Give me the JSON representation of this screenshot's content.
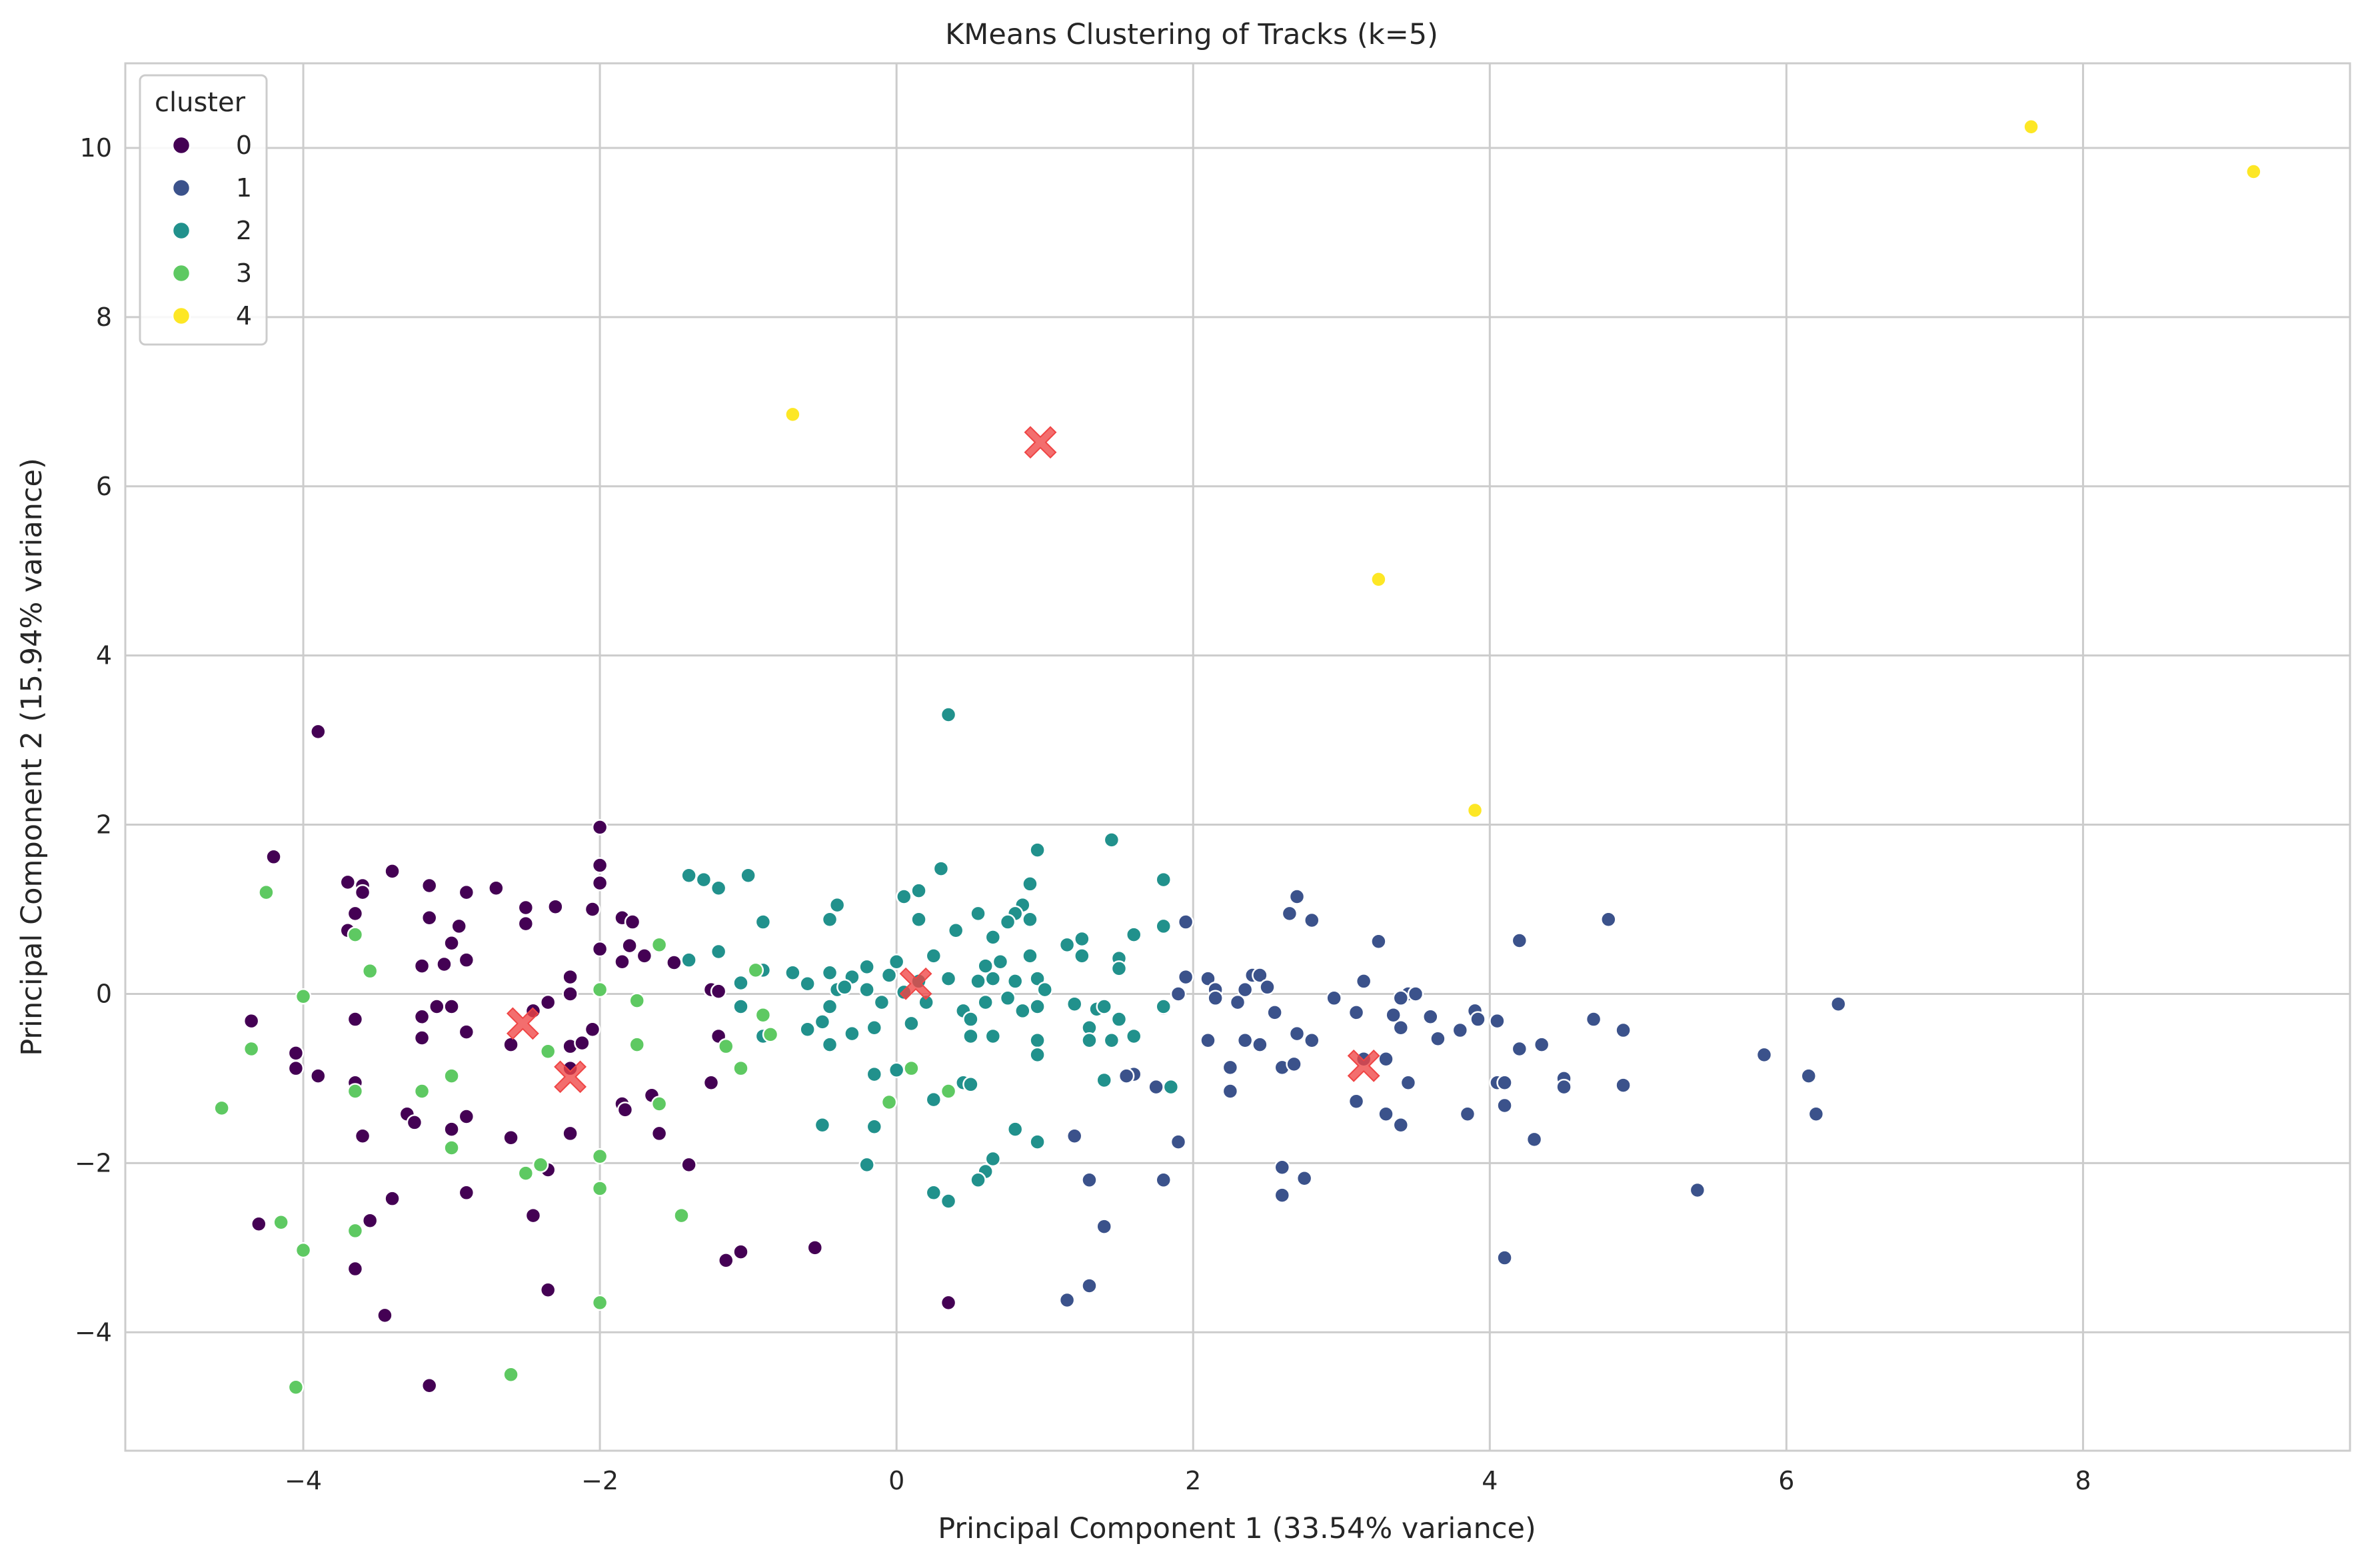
{
  "chart_data": {
    "type": "scatter",
    "title": "KMeans Clustering of Tracks (k=5)",
    "xlabel": "Principal Component 1 (33.54% variance)",
    "ylabel": "Principal Component 2 (15.94% variance)",
    "xlim": [
      -5.2,
      9.8
    ],
    "ylim": [
      -5.4,
      11.0
    ],
    "xticks": [
      -4,
      -2,
      0,
      2,
      4,
      6,
      8
    ],
    "yticks": [
      -4,
      -2,
      0,
      2,
      4,
      6,
      8,
      10
    ],
    "grid": true,
    "legend": {
      "title": "cluster",
      "placement": "top-left"
    },
    "colors": [
      "#440154",
      "#3b528b",
      "#21918c",
      "#5ec962",
      "#fde725"
    ],
    "centroid_color": "#ef4545",
    "series": [
      {
        "name": "0",
        "points": [
          [
            -3.9,
            3.1
          ],
          [
            -2.0,
            1.97
          ],
          [
            -4.2,
            1.62
          ],
          [
            -3.4,
            1.45
          ],
          [
            -2.0,
            1.52
          ],
          [
            -3.7,
            1.32
          ],
          [
            -3.6,
            1.28
          ],
          [
            -2.0,
            1.31
          ],
          [
            -3.6,
            1.2
          ],
          [
            -3.15,
            1.28
          ],
          [
            -2.7,
            1.25
          ],
          [
            -2.9,
            1.2
          ],
          [
            -2.3,
            1.03
          ],
          [
            -2.5,
            1.02
          ],
          [
            -2.05,
            1.0
          ],
          [
            -3.65,
            0.95
          ],
          [
            -1.85,
            0.9
          ],
          [
            -3.15,
            0.9
          ],
          [
            -2.95,
            0.8
          ],
          [
            -3.7,
            0.75
          ],
          [
            -2.5,
            0.83
          ],
          [
            -1.78,
            0.85
          ],
          [
            -3.0,
            0.6
          ],
          [
            -1.8,
            0.57
          ],
          [
            -2.0,
            0.53
          ],
          [
            -1.7,
            0.45
          ],
          [
            -1.85,
            0.38
          ],
          [
            -2.9,
            0.4
          ],
          [
            -3.05,
            0.35
          ],
          [
            -3.2,
            0.33
          ],
          [
            -1.5,
            0.37
          ],
          [
            -2.2,
            0.2
          ],
          [
            -2.2,
            0.0
          ],
          [
            -2.0,
            0.05
          ],
          [
            -2.35,
            -0.1
          ],
          [
            -2.45,
            -0.2
          ],
          [
            -3.1,
            -0.15
          ],
          [
            -3.2,
            -0.27
          ],
          [
            -3.0,
            -0.15
          ],
          [
            -3.65,
            -0.3
          ],
          [
            -4.35,
            -0.32
          ],
          [
            -1.25,
            0.05
          ],
          [
            -1.2,
            0.03
          ],
          [
            -2.05,
            -0.42
          ],
          [
            -2.9,
            -0.45
          ],
          [
            -3.2,
            -0.52
          ],
          [
            -2.2,
            -0.62
          ],
          [
            -2.12,
            -0.58
          ],
          [
            -2.6,
            -0.6
          ],
          [
            -1.2,
            -0.5
          ],
          [
            -4.05,
            -0.7
          ],
          [
            -4.05,
            -0.88
          ],
          [
            -3.9,
            -0.97
          ],
          [
            -2.2,
            -0.88
          ],
          [
            -3.65,
            -1.05
          ],
          [
            -1.25,
            -1.05
          ],
          [
            -1.65,
            -1.2
          ],
          [
            -1.85,
            -1.3
          ],
          [
            -1.83,
            -1.37
          ],
          [
            -3.3,
            -1.42
          ],
          [
            -3.25,
            -1.52
          ],
          [
            -2.9,
            -1.45
          ],
          [
            -3.0,
            -1.6
          ],
          [
            -3.6,
            -1.68
          ],
          [
            -2.6,
            -1.7
          ],
          [
            -2.2,
            -1.65
          ],
          [
            -1.6,
            -1.65
          ],
          [
            -1.4,
            -2.02
          ],
          [
            -2.35,
            -2.08
          ],
          [
            -2.9,
            -2.35
          ],
          [
            -3.4,
            -2.42
          ],
          [
            -2.45,
            -2.62
          ],
          [
            -3.55,
            -2.68
          ],
          [
            -4.3,
            -2.72
          ],
          [
            -1.05,
            -3.05
          ],
          [
            -1.15,
            -3.15
          ],
          [
            -0.55,
            -3.0
          ],
          [
            -3.65,
            -3.25
          ],
          [
            -2.35,
            -3.5
          ],
          [
            0.35,
            -3.65
          ],
          [
            -3.45,
            -3.8
          ],
          [
            -3.15,
            -4.63
          ]
        ]
      },
      {
        "name": "1",
        "points": [
          [
            2.7,
            1.15
          ],
          [
            2.65,
            0.95
          ],
          [
            2.8,
            0.87
          ],
          [
            1.95,
            0.85
          ],
          [
            4.8,
            0.88
          ],
          [
            4.2,
            0.63
          ],
          [
            3.25,
            0.62
          ],
          [
            2.1,
            0.18
          ],
          [
            1.95,
            0.2
          ],
          [
            2.4,
            0.22
          ],
          [
            2.45,
            0.22
          ],
          [
            3.15,
            0.15
          ],
          [
            2.15,
            0.05
          ],
          [
            1.9,
            0.0
          ],
          [
            2.35,
            0.05
          ],
          [
            2.5,
            0.08
          ],
          [
            3.45,
            0.0
          ],
          [
            3.4,
            -0.05
          ],
          [
            3.5,
            0.0
          ],
          [
            2.3,
            -0.1
          ],
          [
            2.15,
            -0.05
          ],
          [
            2.95,
            -0.05
          ],
          [
            1.8,
            -0.17
          ],
          [
            2.55,
            -0.22
          ],
          [
            3.1,
            -0.22
          ],
          [
            3.35,
            -0.25
          ],
          [
            3.6,
            -0.27
          ],
          [
            3.9,
            -0.2
          ],
          [
            3.92,
            -0.3
          ],
          [
            4.05,
            -0.32
          ],
          [
            6.35,
            -0.12
          ],
          [
            4.7,
            -0.3
          ],
          [
            3.4,
            -0.4
          ],
          [
            3.8,
            -0.43
          ],
          [
            3.65,
            -0.53
          ],
          [
            2.7,
            -0.47
          ],
          [
            2.8,
            -0.55
          ],
          [
            2.35,
            -0.55
          ],
          [
            2.45,
            -0.6
          ],
          [
            2.1,
            -0.55
          ],
          [
            4.2,
            -0.65
          ],
          [
            4.35,
            -0.6
          ],
          [
            4.9,
            -0.43
          ],
          [
            5.85,
            -0.72
          ],
          [
            2.6,
            -0.87
          ],
          [
            2.68,
            -0.83
          ],
          [
            2.25,
            -0.87
          ],
          [
            3.3,
            -0.77
          ],
          [
            3.15,
            -0.77
          ],
          [
            3.45,
            -1.05
          ],
          [
            4.05,
            -1.05
          ],
          [
            4.1,
            -1.05
          ],
          [
            4.5,
            -1.0
          ],
          [
            4.5,
            -1.1
          ],
          [
            4.9,
            -1.08
          ],
          [
            6.15,
            -0.97
          ],
          [
            1.6,
            -0.95
          ],
          [
            1.55,
            -0.97
          ],
          [
            1.75,
            -1.1
          ],
          [
            2.25,
            -1.15
          ],
          [
            4.1,
            -1.32
          ],
          [
            3.1,
            -1.27
          ],
          [
            3.3,
            -1.42
          ],
          [
            3.85,
            -1.42
          ],
          [
            3.4,
            -1.55
          ],
          [
            6.2,
            -1.42
          ],
          [
            1.2,
            -1.68
          ],
          [
            1.9,
            -1.75
          ],
          [
            4.3,
            -1.72
          ],
          [
            1.3,
            -2.2
          ],
          [
            1.8,
            -2.2
          ],
          [
            2.6,
            -2.05
          ],
          [
            2.75,
            -2.18
          ],
          [
            2.6,
            -2.38
          ],
          [
            5.4,
            -2.32
          ],
          [
            1.4,
            -2.75
          ],
          [
            4.1,
            -3.12
          ],
          [
            1.3,
            -3.45
          ],
          [
            1.15,
            -3.62
          ]
        ]
      },
      {
        "name": "2",
        "points": [
          [
            0.35,
            3.3
          ],
          [
            1.45,
            1.82
          ],
          [
            0.95,
            1.7
          ],
          [
            1.8,
            1.35
          ],
          [
            0.3,
            1.48
          ],
          [
            -1.4,
            1.4
          ],
          [
            -1.3,
            1.35
          ],
          [
            -1.0,
            1.4
          ],
          [
            0.9,
            1.3
          ],
          [
            -1.2,
            1.25
          ],
          [
            0.15,
            1.22
          ],
          [
            0.05,
            1.15
          ],
          [
            0.85,
            1.05
          ],
          [
            -0.4,
            1.05
          ],
          [
            0.8,
            0.95
          ],
          [
            0.55,
            0.95
          ],
          [
            0.9,
            0.88
          ],
          [
            0.15,
            0.88
          ],
          [
            -0.45,
            0.88
          ],
          [
            -0.9,
            0.85
          ],
          [
            0.75,
            0.85
          ],
          [
            1.8,
            0.8
          ],
          [
            0.4,
            0.75
          ],
          [
            1.6,
            0.7
          ],
          [
            0.65,
            0.67
          ],
          [
            1.25,
            0.65
          ],
          [
            1.15,
            0.58
          ],
          [
            -1.2,
            0.5
          ],
          [
            -1.4,
            0.4
          ],
          [
            0.9,
            0.45
          ],
          [
            1.25,
            0.45
          ],
          [
            1.5,
            0.42
          ],
          [
            0.7,
            0.38
          ],
          [
            0.6,
            0.33
          ],
          [
            0.25,
            0.45
          ],
          [
            0.0,
            0.38
          ],
          [
            -0.2,
            0.32
          ],
          [
            -0.7,
            0.25
          ],
          [
            -0.9,
            0.28
          ],
          [
            -0.45,
            0.25
          ],
          [
            -0.3,
            0.2
          ],
          [
            -0.05,
            0.22
          ],
          [
            0.15,
            0.15
          ],
          [
            0.35,
            0.18
          ],
          [
            0.55,
            0.15
          ],
          [
            0.65,
            0.18
          ],
          [
            0.8,
            0.15
          ],
          [
            0.95,
            0.18
          ],
          [
            1.5,
            0.3
          ],
          [
            1.0,
            0.05
          ],
          [
            -1.05,
            0.13
          ],
          [
            -0.6,
            0.12
          ],
          [
            -0.4,
            0.05
          ],
          [
            -0.35,
            0.08
          ],
          [
            -0.2,
            0.05
          ],
          [
            0.05,
            0.02
          ],
          [
            0.75,
            -0.05
          ],
          [
            0.6,
            -0.1
          ],
          [
            0.95,
            -0.15
          ],
          [
            1.2,
            -0.12
          ],
          [
            1.35,
            -0.18
          ],
          [
            -1.05,
            -0.15
          ],
          [
            -0.45,
            -0.15
          ],
          [
            -0.1,
            -0.1
          ],
          [
            0.2,
            -0.1
          ],
          [
            0.45,
            -0.2
          ],
          [
            0.85,
            -0.2
          ],
          [
            1.4,
            -0.15
          ],
          [
            1.5,
            -0.3
          ],
          [
            1.8,
            -0.15
          ],
          [
            -0.9,
            -0.5
          ],
          [
            -0.6,
            -0.42
          ],
          [
            -0.5,
            -0.33
          ],
          [
            -0.15,
            -0.4
          ],
          [
            0.1,
            -0.35
          ],
          [
            0.5,
            -0.3
          ],
          [
            0.65,
            -0.5
          ],
          [
            1.3,
            -0.4
          ],
          [
            1.45,
            -0.55
          ],
          [
            1.6,
            -0.5
          ],
          [
            -0.45,
            -0.6
          ],
          [
            -0.3,
            -0.47
          ],
          [
            0.5,
            -0.5
          ],
          [
            0.95,
            -0.55
          ],
          [
            0.95,
            -0.72
          ],
          [
            1.3,
            -0.55
          ],
          [
            -0.15,
            -0.95
          ],
          [
            0.0,
            -0.9
          ],
          [
            0.45,
            -1.05
          ],
          [
            0.5,
            -1.07
          ],
          [
            0.35,
            -1.15
          ],
          [
            1.4,
            -1.02
          ],
          [
            1.85,
            -1.1
          ],
          [
            0.25,
            -1.25
          ],
          [
            -0.5,
            -1.55
          ],
          [
            -0.15,
            -1.57
          ],
          [
            0.8,
            -1.6
          ],
          [
            0.95,
            -1.75
          ],
          [
            0.65,
            -1.95
          ],
          [
            -0.2,
            -2.02
          ],
          [
            0.6,
            -2.1
          ],
          [
            0.55,
            -2.2
          ],
          [
            0.25,
            -2.35
          ],
          [
            0.35,
            -2.45
          ]
        ]
      },
      {
        "name": "3",
        "points": [
          [
            -4.25,
            1.2
          ],
          [
            -3.65,
            0.7
          ],
          [
            -1.6,
            0.58
          ],
          [
            -3.55,
            0.27
          ],
          [
            -0.95,
            0.28
          ],
          [
            -2.0,
            0.05
          ],
          [
            -4.0,
            -0.03
          ],
          [
            -1.75,
            -0.08
          ],
          [
            -0.9,
            -0.25
          ],
          [
            -4.35,
            -0.65
          ],
          [
            -2.35,
            -0.68
          ],
          [
            -1.75,
            -0.6
          ],
          [
            -1.15,
            -0.62
          ],
          [
            -0.85,
            -0.48
          ],
          [
            -1.05,
            -0.88
          ],
          [
            -3.0,
            -0.97
          ],
          [
            0.1,
            -0.88
          ],
          [
            -3.65,
            -1.15
          ],
          [
            -3.2,
            -1.15
          ],
          [
            0.35,
            -1.15
          ],
          [
            -1.6,
            -1.3
          ],
          [
            -0.05,
            -1.28
          ],
          [
            -4.55,
            -1.35
          ],
          [
            -3.0,
            -1.82
          ],
          [
            -2.0,
            -1.92
          ],
          [
            -2.4,
            -2.02
          ],
          [
            -2.5,
            -2.12
          ],
          [
            -2.0,
            -2.3
          ],
          [
            -1.45,
            -2.62
          ],
          [
            -4.15,
            -2.7
          ],
          [
            -3.65,
            -2.8
          ],
          [
            -4.0,
            -3.03
          ],
          [
            -2.0,
            -3.65
          ],
          [
            -2.6,
            -4.5
          ],
          [
            -4.05,
            -4.65
          ]
        ]
      },
      {
        "name": "4",
        "points": [
          [
            7.65,
            10.25
          ],
          [
            9.15,
            9.72
          ],
          [
            -0.7,
            6.85
          ],
          [
            3.25,
            4.9
          ],
          [
            3.9,
            2.17
          ]
        ]
      }
    ],
    "centroids": [
      [
        0.97,
        6.52
      ],
      [
        -2.52,
        -0.35
      ],
      [
        -2.2,
        -0.98
      ],
      [
        0.13,
        0.12
      ],
      [
        3.15,
        -0.85
      ]
    ]
  }
}
